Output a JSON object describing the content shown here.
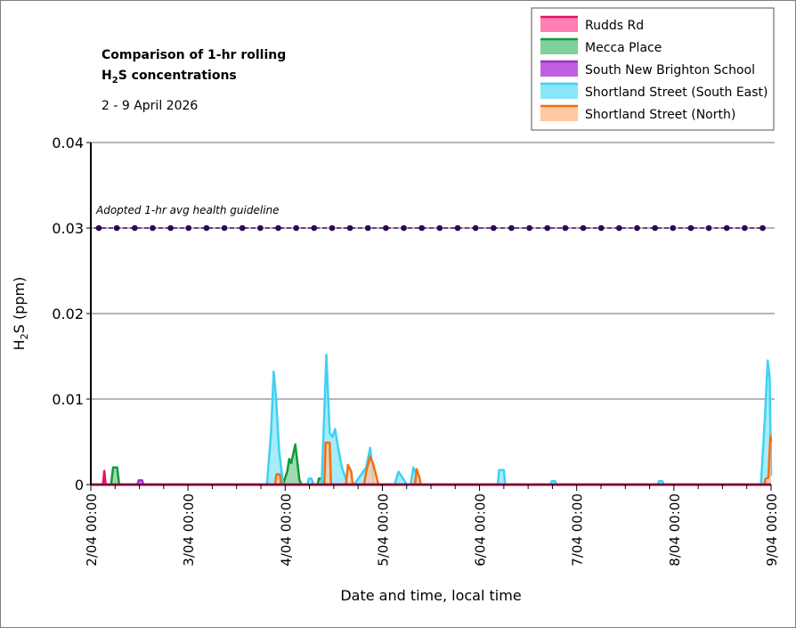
{
  "chart_data": {
    "type": "area",
    "title_line1": "Comparison of 1-hr rolling",
    "title_line2_main": "H",
    "title_line2_sub": "2",
    "title_line2_rest": "S concentrations",
    "subtitle": "2 - 9 April 2026",
    "xlabel": "Date and time, local time",
    "ylabel_main": "H",
    "ylabel_sub": "2",
    "ylabel_rest": "S (ppm)",
    "xlim": [
      "2026-04-02 00:00",
      "2026-04-09 00:00"
    ],
    "ylim": [
      0,
      0.04
    ],
    "yticks": [
      "0",
      "0.01",
      "0.02",
      "0.03",
      "0.04"
    ],
    "xticks": [
      "2/04 00:00",
      "3/04 00:00",
      "4/04 00:00",
      "5/04 00:00",
      "6/04 00:00",
      "7/04 00:00",
      "8/04 00:00",
      "9/04 00:00"
    ],
    "grid": "horizontal",
    "legend_position": "top-right",
    "guideline": {
      "label": "Adopted 1-hr avg health guideline",
      "value": 0.03,
      "color": "#2e0854"
    },
    "series": [
      {
        "name": "Rudds Rd",
        "line": "#e8106b",
        "fill": "#ff80b0",
        "points": [
          [
            "2026-04-02 03:00",
            0
          ],
          [
            "2026-04-02 03:20",
            0.0016
          ],
          [
            "2026-04-02 03:40",
            0
          ]
        ]
      },
      {
        "name": "Mecca Place",
        "line": "#0f9a3a",
        "fill": "#7fcf98",
        "points": [
          [
            "2026-04-02 05:00",
            0
          ],
          [
            "2026-04-02 05:30",
            0.002
          ],
          [
            "2026-04-02 06:30",
            0.002
          ],
          [
            "2026-04-02 07:00",
            0
          ],
          [
            "2026-04-03 23:30",
            0
          ],
          [
            "2026-04-04 00:00",
            0.0008
          ],
          [
            "2026-04-04 00:30",
            0.0015
          ],
          [
            "2026-04-04 01:00",
            0.003
          ],
          [
            "2026-04-04 01:30",
            0.0025
          ],
          [
            "2026-04-04 02:30",
            0.0047
          ],
          [
            "2026-04-04 03:30",
            0.0006
          ],
          [
            "2026-04-04 04:00",
            0
          ],
          [
            "2026-04-04 08:00",
            0
          ],
          [
            "2026-04-04 08:20",
            0.0007
          ],
          [
            "2026-04-04 09:00",
            0.0007
          ],
          [
            "2026-04-04 09:20",
            0
          ]
        ]
      },
      {
        "name": "South New Brighton School",
        "line": "#9a30c8",
        "fill": "#c060e0",
        "points": [
          [
            "2026-04-02 11:30",
            0
          ],
          [
            "2026-04-02 11:50",
            0.0005
          ],
          [
            "2026-04-02 12:40",
            0.0005
          ],
          [
            "2026-04-02 13:00",
            0
          ]
        ]
      },
      {
        "name": "Shortland Street (South East)",
        "line": "#40d0f4",
        "fill": "#8ae6fa",
        "points": [
          [
            "2026-04-03 19:30",
            0
          ],
          [
            "2026-04-03 20:30",
            0.006
          ],
          [
            "2026-04-03 21:10",
            0.0132
          ],
          [
            "2026-04-03 21:40",
            0.0107
          ],
          [
            "2026-04-03 22:30",
            0.004
          ],
          [
            "2026-04-03 23:30",
            0
          ],
          [
            "2026-04-04 05:30",
            0
          ],
          [
            "2026-04-04 05:50",
            0.0007
          ],
          [
            "2026-04-04 06:30",
            0.0007
          ],
          [
            "2026-04-04 07:00",
            0
          ],
          [
            "2026-04-04 09:00",
            0
          ],
          [
            "2026-04-04 09:40",
            0.0085
          ],
          [
            "2026-04-04 10:10",
            0.0152
          ],
          [
            "2026-04-04 11:00",
            0.006
          ],
          [
            "2026-04-04 11:40",
            0.0056
          ],
          [
            "2026-04-04 12:20",
            0.0065
          ],
          [
            "2026-04-04 13:00",
            0.0045
          ],
          [
            "2026-04-04 14:00",
            0.002
          ],
          [
            "2026-04-04 15:30",
            0
          ],
          [
            "2026-04-04 17:00",
            0
          ],
          [
            "2026-04-04 18:30",
            0.001
          ],
          [
            "2026-04-04 20:00",
            0.002
          ],
          [
            "2026-04-04 21:00",
            0.0043
          ],
          [
            "2026-04-04 21:40",
            0.001
          ],
          [
            "2026-04-04 22:00",
            0
          ],
          [
            "2026-04-05 03:00",
            0
          ],
          [
            "2026-04-05 04:00",
            0.0015
          ],
          [
            "2026-04-05 05:00",
            0.0008
          ],
          [
            "2026-04-05 06:00",
            0
          ],
          [
            "2026-04-05 07:00",
            0
          ],
          [
            "2026-04-05 07:40",
            0.002
          ],
          [
            "2026-04-05 08:20",
            0.0013
          ],
          [
            "2026-04-05 08:40",
            0
          ],
          [
            "2026-04-06 04:30",
            0
          ],
          [
            "2026-04-06 04:50",
            0.0017
          ],
          [
            "2026-04-06 06:00",
            0.0017
          ],
          [
            "2026-04-06 06:20",
            0
          ],
          [
            "2026-04-06 17:30",
            0
          ],
          [
            "2026-04-06 17:50",
            0.0004
          ],
          [
            "2026-04-06 18:40",
            0.0004
          ],
          [
            "2026-04-06 19:00",
            0
          ],
          [
            "2026-04-07 20:00",
            0
          ],
          [
            "2026-04-07 20:20",
            0.0004
          ],
          [
            "2026-04-07 21:10",
            0.0004
          ],
          [
            "2026-04-07 21:30",
            0
          ],
          [
            "2026-04-08 21:30",
            0
          ],
          [
            "2026-04-08 22:30",
            0.008
          ],
          [
            "2026-04-08 23:10",
            0.0145
          ],
          [
            "2026-04-08 23:40",
            0.0125
          ],
          [
            "2026-04-09 00:00",
            0.001
          ]
        ]
      },
      {
        "name": "Shortland Street (North)",
        "line": "#f07014",
        "fill": "#ffc8a0",
        "points": [
          [
            "2026-04-03 21:30",
            0
          ],
          [
            "2026-04-03 21:50",
            0.0012
          ],
          [
            "2026-04-03 22:40",
            0.0012
          ],
          [
            "2026-04-03 23:00",
            0
          ],
          [
            "2026-04-04 09:40",
            0
          ],
          [
            "2026-04-04 10:00",
            0.0049
          ],
          [
            "2026-04-04 11:00",
            0.0049
          ],
          [
            "2026-04-04 11:20",
            0
          ],
          [
            "2026-04-04 15:00",
            0
          ],
          [
            "2026-04-04 15:30",
            0.0023
          ],
          [
            "2026-04-04 16:20",
            0.0015
          ],
          [
            "2026-04-04 16:40",
            0
          ],
          [
            "2026-04-04 19:30",
            0
          ],
          [
            "2026-04-04 20:00",
            0.0015
          ],
          [
            "2026-04-04 21:00",
            0.0033
          ],
          [
            "2026-04-04 21:40",
            0.0025
          ],
          [
            "2026-04-04 22:30",
            0.001
          ],
          [
            "2026-04-04 23:00",
            0
          ],
          [
            "2026-04-05 08:00",
            0
          ],
          [
            "2026-04-05 08:30",
            0.0018
          ],
          [
            "2026-04-05 09:10",
            0.0008
          ],
          [
            "2026-04-05 09:30",
            0
          ],
          [
            "2026-04-08 22:20",
            0
          ],
          [
            "2026-04-08 22:40",
            0.0007
          ],
          [
            "2026-04-08 23:20",
            0.0008
          ],
          [
            "2026-04-08 23:50",
            0.0057
          ],
          [
            "2026-04-09 00:00",
            0.005
          ]
        ]
      }
    ]
  }
}
